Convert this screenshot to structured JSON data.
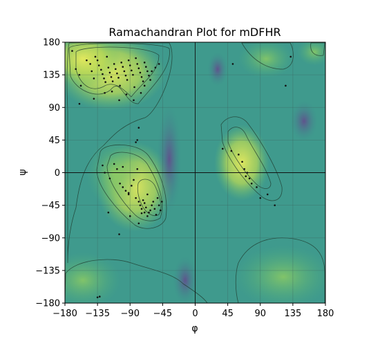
{
  "chart_data": {
    "type": "scatter",
    "title": "Ramachandran Plot for mDFHR",
    "xlabel": "φ",
    "ylabel": "ψ",
    "xlim": [
      -180,
      180
    ],
    "ylim": [
      -180,
      180
    ],
    "xticks": [
      -180,
      -135,
      -90,
      -45,
      0,
      45,
      90,
      135,
      180
    ],
    "yticks": [
      -180,
      -135,
      -90,
      -45,
      0,
      45,
      90,
      135,
      180
    ],
    "xtick_labels": [
      "−180",
      "−135",
      "−90",
      "−45",
      "0",
      "45",
      "90",
      "135",
      "180"
    ],
    "ytick_labels": [
      "−180",
      "−135",
      "−90",
      "−45",
      "0",
      "45",
      "90",
      "135",
      "180"
    ],
    "grid": true,
    "background": "density heatmap with contour lines",
    "colors": {
      "point": "#111111",
      "low_density": "#7a3f8f",
      "mid_density": "#39a48b",
      "high_density": "#d8e35a",
      "contour": "#1f3b2e"
    },
    "points": [
      [
        -170,
        168
      ],
      [
        -165,
        143
      ],
      [
        -160,
        135
      ],
      [
        -158,
        120
      ],
      [
        -150,
        155
      ],
      [
        -145,
        150
      ],
      [
        -143,
        140
      ],
      [
        -140,
        130
      ],
      [
        -138,
        160
      ],
      [
        -135,
        155
      ],
      [
        -133,
        148
      ],
      [
        -130,
        142
      ],
      [
        -128,
        136
      ],
      [
        -126,
        130
      ],
      [
        -124,
        125
      ],
      [
        -122,
        160
      ],
      [
        -120,
        145
      ],
      [
        -118,
        138
      ],
      [
        -116,
        132
      ],
      [
        -114,
        126
      ],
      [
        -112,
        150
      ],
      [
        -110,
        143
      ],
      [
        -108,
        137
      ],
      [
        -106,
        131
      ],
      [
        -104,
        120
      ],
      [
        -102,
        152
      ],
      [
        -100,
        146
      ],
      [
        -98,
        140
      ],
      [
        -96,
        134
      ],
      [
        -94,
        128
      ],
      [
        -92,
        155
      ],
      [
        -90,
        148
      ],
      [
        -88,
        141
      ],
      [
        -86,
        135
      ],
      [
        -84,
        118
      ],
      [
        -82,
        158
      ],
      [
        -80,
        150
      ],
      [
        -78,
        144
      ],
      [
        -76,
        138
      ],
      [
        -74,
        132
      ],
      [
        -72,
        126
      ],
      [
        -70,
        152
      ],
      [
        -68,
        146
      ],
      [
        -66,
        140
      ],
      [
        -64,
        134
      ],
      [
        -62,
        128
      ],
      [
        -60,
        140
      ],
      [
        -55,
        145
      ],
      [
        -50,
        150
      ],
      [
        -85,
        100
      ],
      [
        -95,
        108
      ],
      [
        -115,
        112
      ],
      [
        -125,
        110
      ],
      [
        -140,
        102
      ],
      [
        -160,
        95
      ],
      [
        -105,
        100
      ],
      [
        -75,
        110
      ],
      [
        -70,
        120
      ],
      [
        -78,
        62
      ],
      [
        -80,
        45
      ],
      [
        -82,
        42
      ],
      [
        -128,
        10
      ],
      [
        -125,
        0
      ],
      [
        -118,
        -8
      ],
      [
        -112,
        12
      ],
      [
        -108,
        5
      ],
      [
        -104,
        -15
      ],
      [
        -100,
        -20
      ],
      [
        -96,
        -25
      ],
      [
        -92,
        -30
      ],
      [
        -88,
        -18
      ],
      [
        -85,
        -10
      ],
      [
        -82,
        -35
      ],
      [
        -80,
        5
      ],
      [
        -78,
        -40
      ],
      [
        -76,
        -45
      ],
      [
        -74,
        -50
      ],
      [
        -72,
        -38
      ],
      [
        -70,
        -42
      ],
      [
        -68,
        -48
      ],
      [
        -66,
        -30
      ],
      [
        -64,
        -55
      ],
      [
        -62,
        -52
      ],
      [
        -60,
        -45
      ],
      [
        -58,
        -40
      ],
      [
        -56,
        -50
      ],
      [
        -54,
        -58
      ],
      [
        -52,
        -35
      ],
      [
        -50,
        -45
      ],
      [
        -48,
        -52
      ],
      [
        -46,
        -40
      ],
      [
        -66,
        -60
      ],
      [
        -70,
        -55
      ],
      [
        -74,
        -56
      ],
      [
        -78,
        -70
      ],
      [
        -90,
        -60
      ],
      [
        -120,
        -55
      ],
      [
        -105,
        -85
      ],
      [
        -92,
        -28
      ],
      [
        -100,
        8
      ],
      [
        38,
        33
      ],
      [
        50,
        30
      ],
      [
        60,
        25
      ],
      [
        65,
        15
      ],
      [
        68,
        5
      ],
      [
        70,
        -5
      ],
      [
        72,
        0
      ],
      [
        75,
        -8
      ],
      [
        78,
        -15
      ],
      [
        85,
        -20
      ],
      [
        90,
        -35
      ],
      [
        100,
        -30
      ],
      [
        110,
        -45
      ],
      [
        52,
        150
      ],
      [
        125,
        120
      ],
      [
        132,
        160
      ],
      [
        -135,
        -172
      ],
      [
        -132,
        -171
      ]
    ]
  }
}
